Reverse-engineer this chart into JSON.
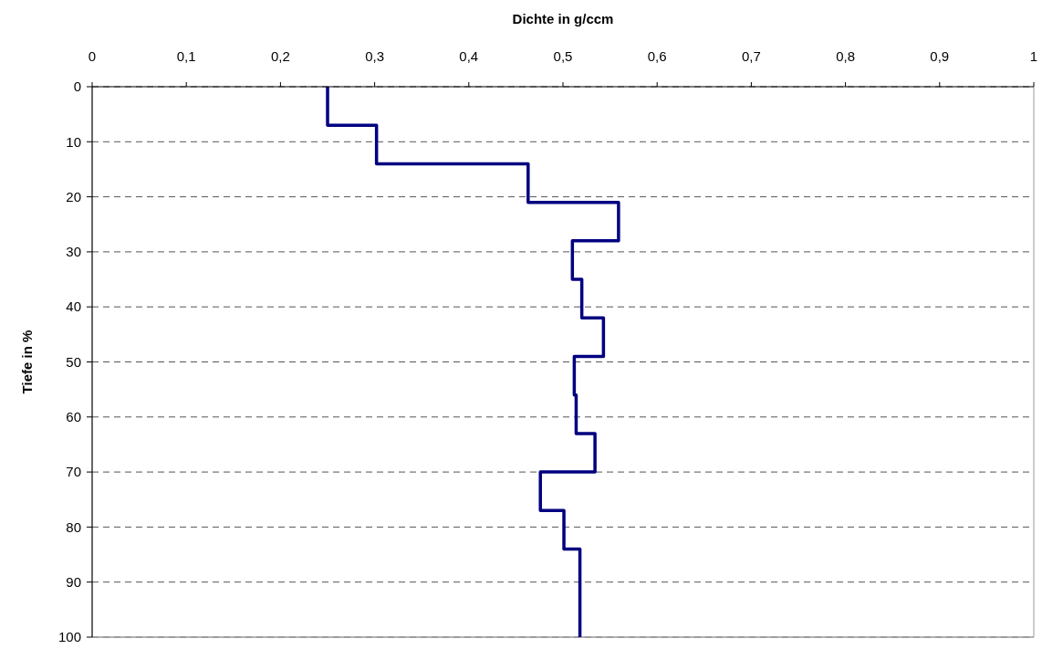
{
  "chart_data": {
    "type": "line",
    "xlabel": "Dichte in g/ccm",
    "ylabel": "Tiefe in %",
    "xlim": [
      0,
      1
    ],
    "xticks": [
      0,
      {
        "value": 0.1,
        "label": "0,1"
      },
      {
        "value": 0.2,
        "label": "0,2"
      },
      {
        "value": 0.3,
        "label": "0,3"
      },
      {
        "value": 0.4,
        "label": "0,4"
      },
      {
        "value": 0.5,
        "label": "0,5"
      },
      {
        "value": 0.6,
        "label": "0,6"
      },
      {
        "value": 0.7,
        "label": "0,7"
      },
      {
        "value": 0.8,
        "label": "0,8"
      },
      {
        "value": 0.9,
        "label": "0,9"
      },
      1
    ],
    "ylim": [
      100,
      0
    ],
    "yticks": [
      0,
      10,
      20,
      30,
      40,
      50,
      60,
      70,
      80,
      90,
      100
    ],
    "grid": "y",
    "series": [
      {
        "color": "#000080",
        "x": [
          0.25,
          0.25,
          0.302,
          0.302,
          0.463,
          0.463,
          0.559,
          0.559,
          0.51,
          0.51,
          0.52,
          0.52,
          0.543,
          0.543,
          0.512,
          0.512,
          0.514,
          0.514,
          0.534,
          0.534,
          0.476,
          0.476,
          0.501,
          0.501,
          0.518,
          0.518
        ],
        "values": [
          0,
          7,
          7,
          14,
          14,
          21,
          21,
          28,
          28,
          35,
          35,
          42,
          42,
          49,
          49,
          56,
          56,
          63,
          63,
          70,
          70,
          77,
          77,
          84,
          84,
          100
        ]
      }
    ]
  }
}
